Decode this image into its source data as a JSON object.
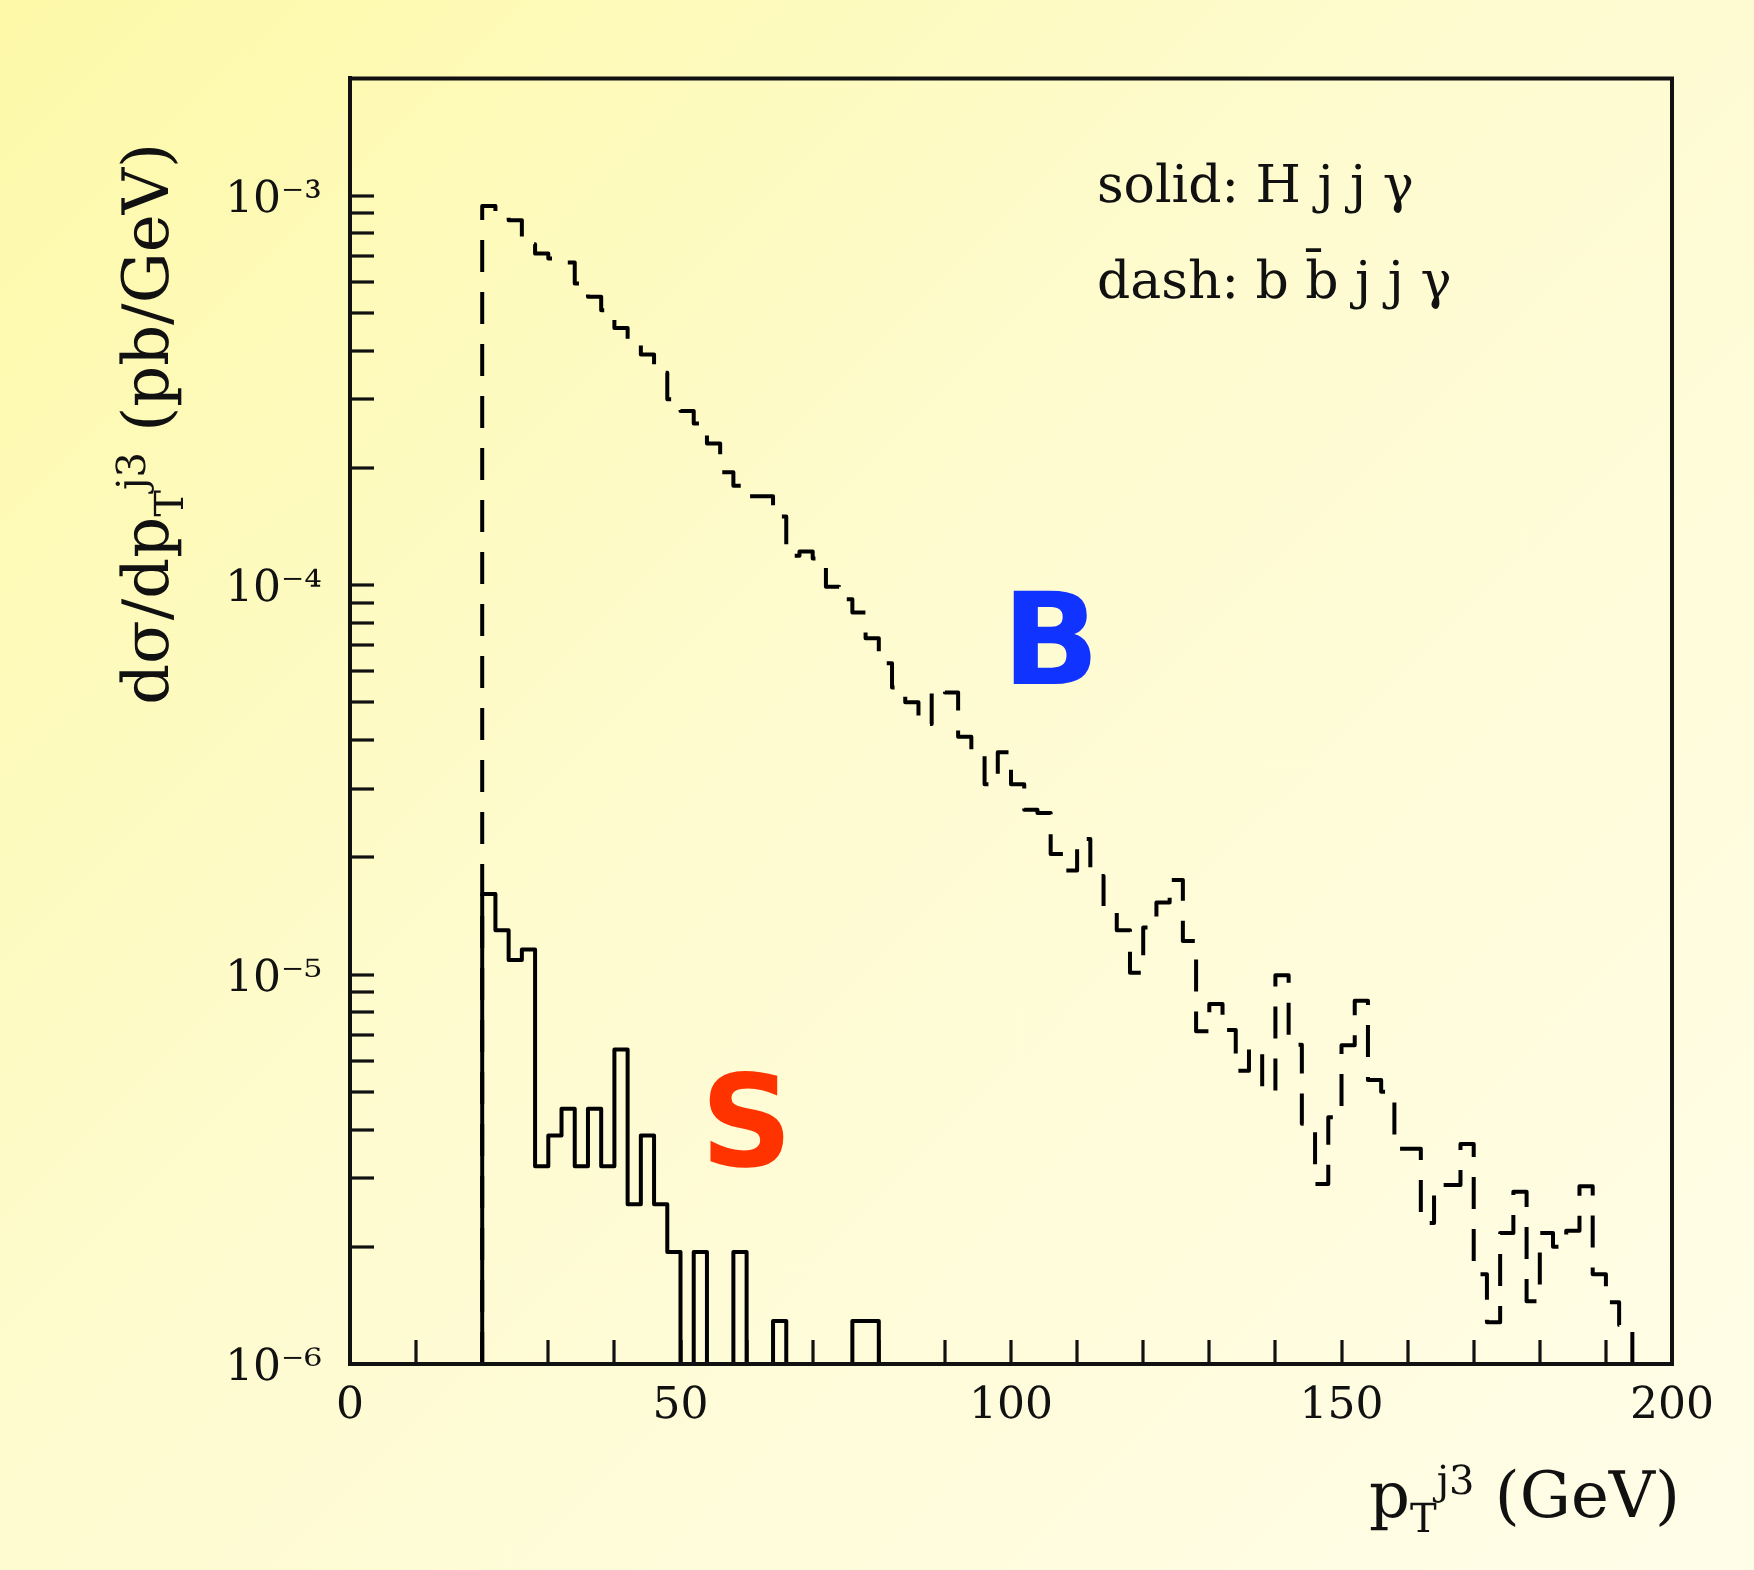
{
  "chart_data": {
    "type": "histogram",
    "xlabel": "p$_{T}$$^{j3}$ (GeV)",
    "ylabel": "dσ/dp$_{T}$$^{j3}$ (pb/GeV)",
    "annotations": [
      "solid: H j j γ",
      "dash: b b̄ j j γ"
    ],
    "log": "y",
    "grid": false,
    "xlim": [
      0,
      200
    ],
    "xticks": [
      0,
      {
        "value": 10,
        "label": null
      },
      {
        "value": 20,
        "label": null
      },
      {
        "value": 30,
        "label": null
      },
      {
        "value": 40,
        "label": null
      },
      50,
      {
        "value": 60,
        "label": null
      },
      {
        "value": 70,
        "label": null
      },
      {
        "value": 80,
        "label": null
      },
      {
        "value": 90,
        "label": null
      },
      100,
      {
        "value": 110,
        "label": null
      },
      {
        "value": 120,
        "label": null
      },
      {
        "value": 130,
        "label": null
      },
      {
        "value": 140,
        "label": null
      },
      150,
      {
        "value": 160,
        "label": null
      },
      {
        "value": 170,
        "label": null
      },
      {
        "value": 180,
        "label": null
      },
      {
        "value": 190,
        "label": null
      },
      200
    ],
    "ylim": [
      1e-06,
      0.002
    ],
    "yticks": [
      {
        "value": 1e-06,
        "label": "10⁻⁶"
      },
      {
        "value": 2e-06,
        "label": null
      },
      {
        "value": 3e-06,
        "label": null
      },
      {
        "value": 4e-06,
        "label": null
      },
      {
        "value": 5e-06,
        "label": null
      },
      {
        "value": 6e-06,
        "label": null
      },
      {
        "value": 7e-06,
        "label": null
      },
      {
        "value": 8e-06,
        "label": null
      },
      {
        "value": 9e-06,
        "label": null
      },
      {
        "value": 1e-05,
        "label": "10⁻⁵"
      },
      {
        "value": 2e-05,
        "label": null
      },
      {
        "value": 3e-05,
        "label": null
      },
      {
        "value": 4e-05,
        "label": null
      },
      {
        "value": 5e-05,
        "label": null
      },
      {
        "value": 6e-05,
        "label": null
      },
      {
        "value": 7e-05,
        "label": null
      },
      {
        "value": 8e-05,
        "label": null
      },
      {
        "value": 9e-05,
        "label": null
      },
      {
        "value": 0.0001,
        "label": "10⁻⁴"
      },
      {
        "value": 0.0002,
        "label": null
      },
      {
        "value": 0.0003,
        "label": null
      },
      {
        "value": 0.0004,
        "label": null
      },
      {
        "value": 0.0005,
        "label": null
      },
      {
        "value": 0.0006,
        "label": null
      },
      {
        "value": 0.0007,
        "label": null
      },
      {
        "value": 0.0008,
        "label": null
      },
      {
        "value": 0.0009,
        "label": null
      },
      {
        "value": 0.001,
        "label": "10⁻³"
      }
    ],
    "bins": [
      20,
      22,
      24,
      26,
      28,
      30,
      32,
      34,
      36,
      38,
      40,
      42,
      44,
      46,
      48,
      50,
      52,
      54,
      56,
      58,
      60,
      62,
      64,
      66,
      68,
      70,
      72,
      74,
      76,
      78,
      80,
      82,
      84,
      86,
      88,
      90,
      92,
      94,
      96,
      98,
      100,
      102,
      104,
      106,
      108,
      110,
      112,
      114,
      116,
      118,
      120,
      122,
      124,
      126,
      128,
      130,
      132,
      134,
      136,
      138,
      140,
      142,
      144,
      146,
      148,
      150,
      152,
      154,
      156,
      158,
      160,
      162,
      164,
      166,
      168,
      170,
      172,
      174,
      176,
      178,
      180,
      182,
      184,
      186,
      188,
      190,
      192,
      194,
      196,
      198,
      200
    ],
    "series": [
      {
        "name": "S",
        "color": "#000000",
        "line_style": "solid",
        "values": [
          1.61e-05,
          1.3e-05,
          1.09e-05,
          1.16e-05,
          3.22e-06,
          3.86e-06,
          4.52e-06,
          3.22e-06,
          4.52e-06,
          3.22e-06,
          6.42e-06,
          2.57e-06,
          3.86e-06,
          2.57e-06,
          1.94e-06,
          null,
          1.94e-06,
          null,
          null,
          1.94e-06,
          null,
          null,
          1.29e-06,
          null,
          null,
          null,
          null,
          null,
          1.29e-06,
          1.29e-06,
          null,
          null,
          null,
          null,
          null,
          null,
          null,
          null,
          null,
          null,
          null,
          null,
          null,
          null,
          null,
          null,
          null,
          null,
          null,
          null,
          null,
          null,
          null,
          null,
          null,
          null,
          null,
          null,
          null,
          null,
          null,
          null,
          null,
          null,
          null,
          null,
          null,
          null,
          null,
          null,
          null,
          null,
          null,
          null,
          null,
          null,
          null,
          null,
          null,
          null,
          null,
          null,
          null,
          null,
          null,
          null,
          null,
          null,
          null,
          null
        ]
      },
      {
        "name": "B",
        "color": "#000000",
        "line_style": "dashed",
        "values": [
          0.00094,
          0.0009,
          0.000865,
          0.00075,
          0.00071,
          0.00069,
          0.000673,
          0.000595,
          0.00055,
          0.000508,
          0.000457,
          0.00042,
          0.000391,
          0.000351,
          0.0003,
          0.00028,
          0.00026,
          0.000231,
          0.000195,
          0.00018,
          0.000169,
          0.000169,
          0.00015,
          0.000119,
          0.000122,
          0.000117,
          9.9e-05,
          9.2e-05,
          8.5e-05,
          7.3e-05,
          6.3e-05,
          5.46e-05,
          5e-05,
          4.4e-05,
          5.4e-05,
          5.3e-05,
          4.08e-05,
          3.72e-05,
          3.08e-05,
          3.72e-05,
          3.08e-05,
          2.65e-05,
          2.6e-05,
          2.04e-05,
          1.85e-05,
          2.23e-05,
          1.79e-05,
          1.49e-05,
          1.3e-05,
          1.01e-05,
          1.32e-05,
          1.53e-05,
          1.75e-05,
          1.22e-05,
          7.15e-06,
          8.4e-06,
          7.2e-06,
          5.66e-06,
          6.46e-06,
          5e-06,
          9.96e-06,
          6.6e-06,
          4.14e-06,
          2.9e-06,
          4.3e-06,
          6.58e-06,
          8.57e-06,
          5.36e-06,
          5e-06,
          3.57e-06,
          3.57e-06,
          2.3e-06,
          2.88e-06,
          2.88e-06,
          3.67e-06,
          1.7e-06,
          1.28e-06,
          2.17e-06,
          2.77e-06,
          1.45e-06,
          2.17e-06,
          2e-06,
          2.2e-06,
          2.86e-06,
          1.7e-06,
          1.44e-06,
          1.26e-06,
          null,
          null,
          null
        ]
      }
    ]
  }
}
